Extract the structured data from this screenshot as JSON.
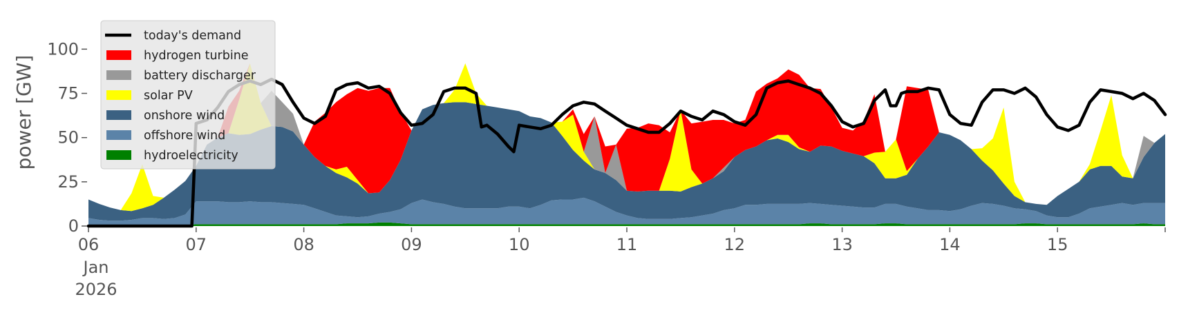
{
  "chart_data": {
    "type": "area",
    "ylabel": "power [GW]",
    "ylim": [
      0,
      120
    ],
    "xlim_days": [
      6,
      16
    ],
    "yticks": [
      0,
      25,
      50,
      75,
      100
    ],
    "xtick_days": [
      6,
      7,
      8,
      9,
      10,
      11,
      12,
      13,
      14,
      15
    ],
    "xtick_labels": [
      "06",
      "07",
      "08",
      "09",
      "10",
      "11",
      "12",
      "13",
      "14",
      "15"
    ],
    "first_tick_extra": [
      "Jan",
      "2026"
    ],
    "grid": false,
    "legend_position": "upper-left",
    "x_days": [
      6.0,
      6.1,
      6.2,
      6.3,
      6.4,
      6.5,
      6.6,
      6.7,
      6.8,
      6.9,
      7.0,
      7.1,
      7.2,
      7.3,
      7.4,
      7.5,
      7.6,
      7.7,
      7.8,
      7.9,
      8.0,
      8.1,
      8.2,
      8.3,
      8.4,
      8.5,
      8.6,
      8.7,
      8.8,
      8.9,
      9.0,
      9.1,
      9.2,
      9.3,
      9.4,
      9.5,
      9.6,
      9.7,
      9.8,
      9.9,
      10.0,
      10.1,
      10.2,
      10.3,
      10.4,
      10.5,
      10.6,
      10.7,
      10.8,
      10.9,
      11.0,
      11.1,
      11.2,
      11.3,
      11.4,
      11.5,
      11.6,
      11.7,
      11.8,
      11.9,
      12.0,
      12.1,
      12.2,
      12.3,
      12.4,
      12.5,
      12.6,
      12.7,
      12.8,
      12.9,
      13.0,
      13.1,
      13.2,
      13.3,
      13.4,
      13.5,
      13.6,
      13.7,
      13.8,
      13.9,
      14.0,
      14.1,
      14.2,
      14.3,
      14.4,
      14.5,
      14.6,
      14.7,
      14.8,
      14.9,
      15.0,
      15.1,
      15.2,
      15.3,
      15.4,
      15.5,
      15.6,
      15.7,
      15.8,
      15.9,
      16.0
    ],
    "series": [
      {
        "name": "hydroelectricity",
        "color": "#008000",
        "values": [
          0.5,
          0.5,
          0.5,
          0.5,
          0.5,
          0.5,
          0.5,
          0.5,
          0.5,
          0.5,
          1,
          1,
          1,
          1,
          1,
          1,
          1,
          1,
          1,
          1,
          1,
          1,
          1,
          1,
          1.5,
          1.5,
          1.5,
          2,
          2,
          1.5,
          1,
          1,
          1,
          1,
          1,
          1,
          1,
          1,
          1,
          1,
          1,
          1,
          1,
          1,
          1,
          1,
          1,
          1,
          1,
          1,
          1,
          1,
          1,
          1,
          1,
          1,
          1,
          1,
          1,
          1,
          1,
          1,
          1,
          1,
          1,
          1,
          1,
          1.5,
          1.5,
          1,
          1,
          1,
          1,
          1,
          1.5,
          1.5,
          1,
          1,
          1,
          1,
          1,
          1,
          1,
          1,
          1,
          1,
          1,
          1.5,
          1.5,
          1,
          1,
          1,
          1,
          1,
          1,
          1,
          1,
          1,
          1.5,
          1,
          1
        ]
      },
      {
        "name": "offshore wind",
        "color": "#5b83a8",
        "values": [
          4,
          3,
          2.5,
          2.5,
          3,
          4,
          4,
          3.5,
          4,
          6,
          13,
          13,
          13,
          12.5,
          12.5,
          13,
          12.5,
          12.5,
          12,
          11.5,
          11,
          9,
          7,
          5,
          4,
          3.5,
          4,
          5,
          6,
          8,
          12,
          14,
          12.5,
          11.5,
          10,
          9,
          9,
          9,
          9,
          10,
          10,
          9,
          11,
          13.5,
          14,
          14,
          15,
          13,
          10,
          7,
          5,
          3.5,
          3,
          3,
          3,
          3.5,
          4,
          5,
          6,
          8,
          9,
          11,
          11,
          11.5,
          11.5,
          11.5,
          11.5,
          11.5,
          11,
          11,
          10.5,
          10,
          9.5,
          9.5,
          11,
          11,
          10,
          9,
          8,
          8,
          7.5,
          8.5,
          10.5,
          12,
          11.5,
          10.5,
          9,
          8,
          7,
          5,
          4,
          4,
          6,
          9,
          10,
          11,
          12,
          11,
          11.5,
          12,
          12
        ]
      },
      {
        "name": "onshore wind",
        "color": "#3b6182",
        "values": [
          10.5,
          9,
          7.5,
          6,
          5,
          5.5,
          7.5,
          12,
          16,
          19,
          20,
          32,
          36,
          39,
          38,
          38,
          41,
          43,
          43,
          41,
          34,
          29,
          26,
          24,
          22,
          19,
          13,
          12,
          18,
          28,
          41,
          51,
          55,
          57,
          59,
          60,
          59,
          58,
          57,
          55,
          54,
          52,
          49,
          44,
          36,
          28,
          21,
          18,
          19,
          18,
          14,
          15,
          16,
          16,
          16,
          15,
          17,
          18,
          20,
          22,
          29,
          31,
          33,
          36,
          37,
          35,
          31,
          29,
          33,
          33,
          31,
          30,
          29,
          25,
          14.5,
          14.5,
          18,
          28,
          36,
          44,
          43,
          39,
          32,
          24,
          19,
          12.5,
          7,
          4,
          4,
          6,
          12,
          16,
          18,
          22,
          23,
          22,
          15,
          15,
          26,
          34,
          39
        ]
      },
      {
        "name": "solar PV",
        "color": "#ffff00",
        "values": [
          0,
          0,
          0,
          0,
          10,
          25,
          5,
          0,
          0,
          0,
          0,
          0,
          0,
          0,
          20,
          40,
          15,
          0,
          0,
          0,
          0,
          0,
          0,
          2,
          6,
          2,
          0,
          0,
          0,
          0,
          0,
          0,
          0,
          0,
          7,
          22,
          6,
          0,
          0,
          0,
          0,
          0,
          0,
          0,
          8,
          20,
          5,
          0,
          0,
          0,
          0,
          0,
          0,
          0,
          18,
          46,
          10,
          0,
          0,
          0,
          0,
          0,
          0,
          0,
          2,
          4,
          1,
          0,
          0,
          0,
          0,
          0,
          0,
          6,
          15,
          22,
          2,
          0,
          0,
          0,
          0,
          0,
          0,
          7,
          18,
          43,
          8,
          0,
          0,
          0,
          0,
          0,
          0,
          3,
          20,
          40,
          12,
          0,
          0,
          0,
          0
        ]
      },
      {
        "name": "battery discharger",
        "color": "#999999",
        "values": [
          0,
          0,
          0,
          0,
          0,
          0,
          0,
          0,
          0,
          0,
          0,
          0,
          0,
          0,
          0,
          0,
          0,
          20,
          14,
          10,
          0,
          0,
          0,
          0,
          0,
          0,
          0,
          0,
          0,
          0,
          0,
          0,
          0,
          0,
          0,
          0,
          0,
          0,
          0,
          0,
          0,
          0,
          0,
          0,
          0,
          0,
          0,
          30,
          0,
          20,
          0,
          0,
          0,
          0,
          0,
          0,
          0,
          0,
          0,
          2,
          0,
          0,
          0,
          0,
          0,
          0,
          0,
          0,
          0,
          0,
          0,
          0,
          0,
          0,
          0,
          0,
          0,
          0,
          0,
          0,
          0,
          0,
          0,
          0,
          0,
          0,
          0,
          0,
          0,
          0,
          0,
          0,
          0,
          0,
          0,
          0,
          0,
          0,
          12,
          0,
          0
        ]
      },
      {
        "name": "hydrogen turbine",
        "color": "#ff0000",
        "values": [
          0,
          0,
          0,
          0,
          0,
          0,
          0,
          0,
          0,
          0,
          0,
          0,
          0,
          15,
          5,
          0,
          0,
          0,
          0,
          0,
          0,
          20,
          30,
          38,
          41,
          52,
          58,
          59,
          52,
          27,
          0,
          0,
          0,
          0,
          0,
          0,
          0,
          0,
          0,
          0,
          0,
          0,
          0,
          0,
          0,
          3,
          10,
          0,
          15,
          0,
          35,
          36,
          38,
          37,
          15,
          0,
          26,
          35,
          33,
          27,
          19,
          17,
          31,
          32,
          32,
          37,
          41,
          36,
          32,
          22,
          13,
          13,
          20,
          33,
          0,
          0,
          48,
          40,
          32,
          0,
          0,
          0,
          0,
          0,
          0,
          0,
          0,
          0,
          0,
          0,
          0,
          0,
          0,
          0,
          0,
          0,
          0,
          0,
          0,
          0,
          0
        ]
      }
    ],
    "demand": {
      "name": "today's demand",
      "color": "#000000",
      "x_days": [
        6.0,
        6.9,
        6.96,
        7.0,
        7.1,
        7.2,
        7.3,
        7.4,
        7.5,
        7.6,
        7.7,
        7.8,
        7.9,
        8.0,
        8.1,
        8.2,
        8.3,
        8.4,
        8.5,
        8.6,
        8.7,
        8.8,
        8.9,
        9.0,
        9.1,
        9.2,
        9.3,
        9.4,
        9.5,
        9.6,
        9.65,
        9.7,
        9.8,
        9.9,
        9.95,
        10.0,
        10.1,
        10.2,
        10.3,
        10.4,
        10.5,
        10.6,
        10.7,
        10.8,
        10.9,
        11.0,
        11.1,
        11.2,
        11.3,
        11.4,
        11.5,
        11.6,
        11.7,
        11.8,
        11.9,
        12.0,
        12.1,
        12.2,
        12.3,
        12.4,
        12.5,
        12.6,
        12.7,
        12.8,
        12.9,
        13.0,
        13.1,
        13.2,
        13.3,
        13.4,
        13.45,
        13.5,
        13.55,
        13.6,
        13.7,
        13.8,
        13.9,
        14.0,
        14.1,
        14.2,
        14.3,
        14.4,
        14.5,
        14.6,
        14.7,
        14.8,
        14.9,
        15.0,
        15.1,
        15.2,
        15.3,
        15.4,
        15.5,
        15.6,
        15.7,
        15.8,
        15.9,
        16.0
      ],
      "values": [
        0,
        0,
        0,
        58,
        60,
        67,
        76,
        80,
        82,
        80,
        83,
        80,
        70,
        61,
        58,
        62,
        77,
        80,
        81,
        78,
        79,
        75,
        64,
        57,
        58,
        63,
        76,
        78,
        78,
        75,
        56,
        57,
        52,
        45,
        42,
        57,
        56,
        55,
        57,
        63,
        68,
        70,
        69,
        65,
        61,
        57,
        55,
        53,
        53,
        58,
        65,
        62,
        60,
        65,
        63,
        59,
        57,
        63,
        78,
        81,
        82,
        80,
        78,
        75,
        68,
        59,
        56,
        58,
        71,
        77,
        68,
        68,
        75,
        76,
        76,
        78,
        77,
        63,
        58,
        57,
        70,
        77,
        77,
        75,
        78,
        73,
        63,
        56,
        54,
        57,
        70,
        77,
        76,
        75,
        72,
        75,
        71,
        63
      ]
    },
    "legend": [
      "today's demand",
      "hydrogen turbine",
      "battery discharger",
      "solar PV",
      "onshore wind",
      "offshore wind",
      "hydroelectricity"
    ]
  }
}
